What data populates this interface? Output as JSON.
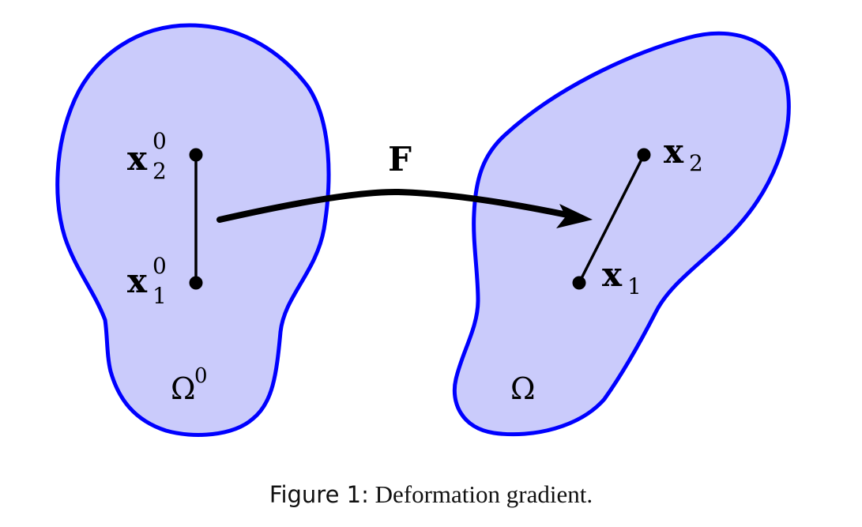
{
  "colors": {
    "region_fill": "#cacbfb",
    "region_stroke": "#0000ff",
    "ink": "#000000"
  },
  "reference_region": {
    "label": "Ω",
    "superscript": "0",
    "points": [
      {
        "base": "x",
        "subscript": "2",
        "superscript": "0"
      },
      {
        "base": "x",
        "subscript": "1",
        "superscript": "0"
      }
    ]
  },
  "current_region": {
    "label": "Ω",
    "points": [
      {
        "base": "x",
        "subscript": "2"
      },
      {
        "base": "x",
        "subscript": "1"
      }
    ]
  },
  "mapping": {
    "label": "F"
  },
  "caption": {
    "label": "Figure 1:",
    "text": "Deformation gradient."
  }
}
